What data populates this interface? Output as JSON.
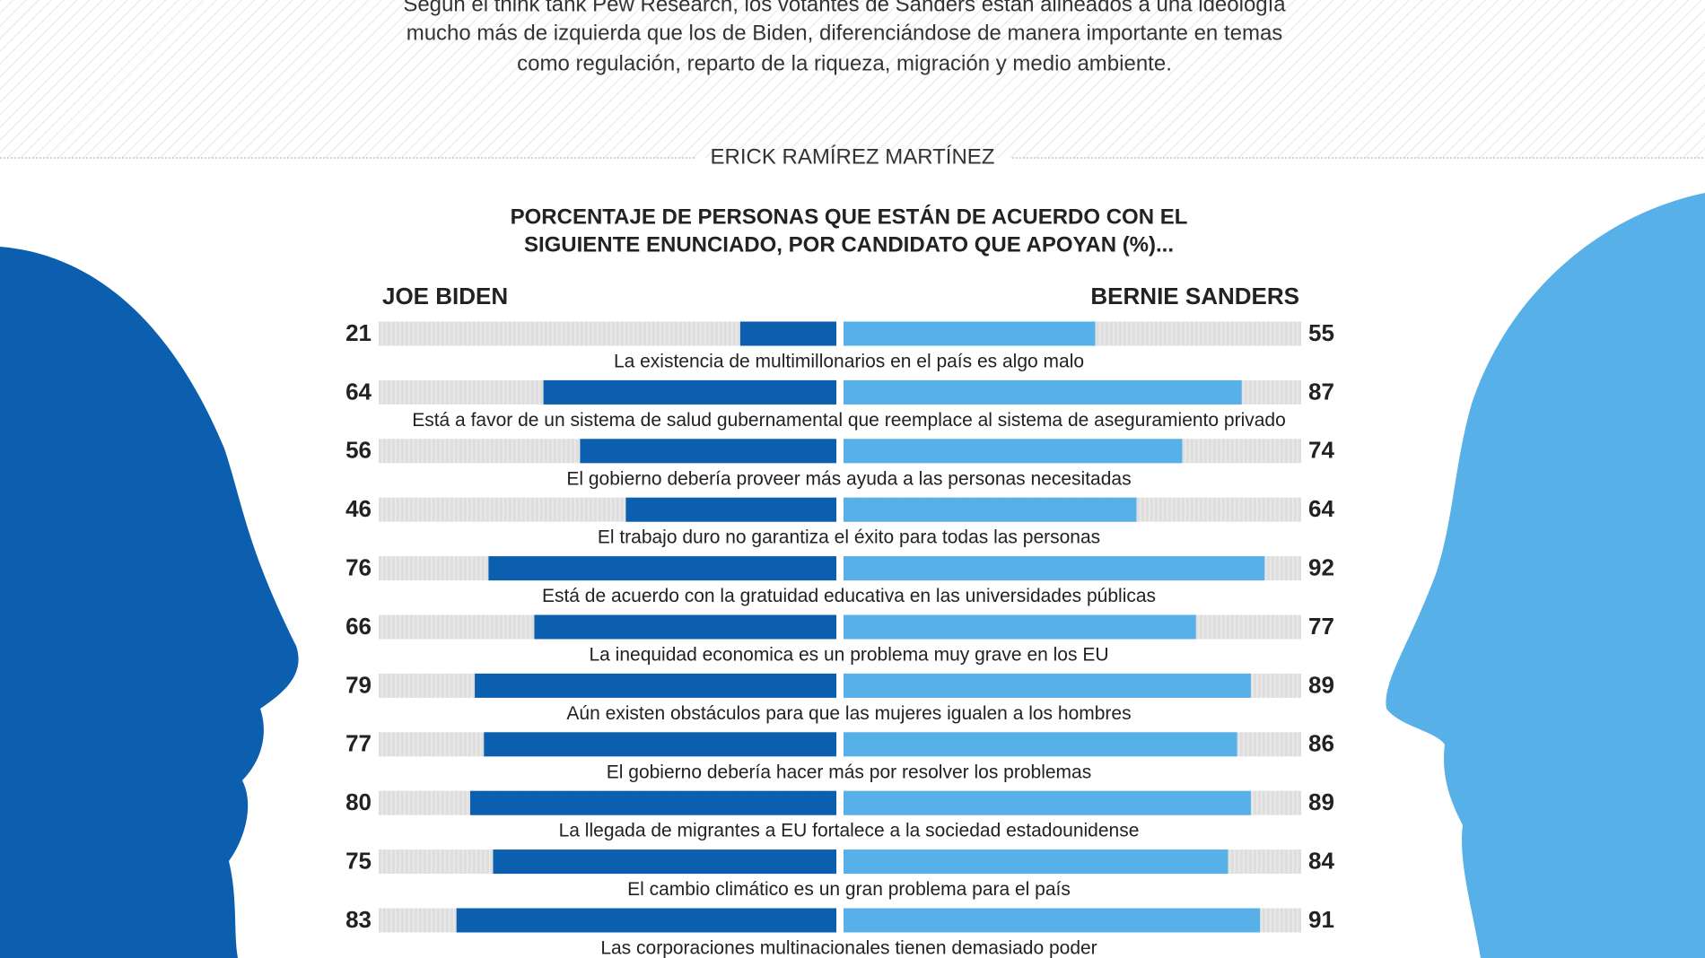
{
  "chart_data": {
    "type": "butterfly",
    "subtitle_lines": [
      "Según el think tank Pew Research, los votantes de Sanders están alineados a una ideología",
      "mucho más de izquierda que los de Biden, diferenciándose de manera importante en temas",
      "como regulación, reparto de la riqueza, migración y medio ambiente."
    ],
    "author": "ERICK RAMÍREZ MARTÍNEZ",
    "title_lines": [
      "PORCENTAJE DE PERSONAS QUE ESTÁN DE ACUERDO CON EL",
      "SIGUIENTE ENUNCIADO, POR CANDIDATO QUE APOYAN (%)..."
    ],
    "categories": [
      "La existencia de multimillonarios en el país es algo malo",
      "Está a favor de un sistema de salud gubernamental que reemplace al sistema de aseguramiento privado",
      "El gobierno debería proveer más ayuda a las personas necesitadas",
      "El trabajo duro no garantiza el éxito para todas las personas",
      "Está de acuerdo con la gratuidad educativa en las universidades públicas",
      "La inequidad economica es un problema muy grave en los EU",
      "Aún existen obstáculos para que las mujeres igualen a los hombres",
      "El gobierno debería hacer más por resolver los problemas",
      "La llegada de migrantes a EU fortalece a la sociedad estadounidense",
      "El cambio climático es un gran problema para el país",
      "Las corporaciones multinacionales tienen demasiado poder"
    ],
    "series": [
      {
        "name": "JOE BIDEN",
        "color": "#0b5fae",
        "values": [
          21,
          64,
          56,
          46,
          76,
          66,
          79,
          77,
          80,
          75,
          83
        ]
      },
      {
        "name": "BERNIE SANDERS",
        "color": "#58b0e8",
        "values": [
          55,
          87,
          74,
          64,
          92,
          77,
          89,
          86,
          89,
          84,
          91
        ]
      }
    ],
    "xlim": [
      0,
      100
    ]
  }
}
